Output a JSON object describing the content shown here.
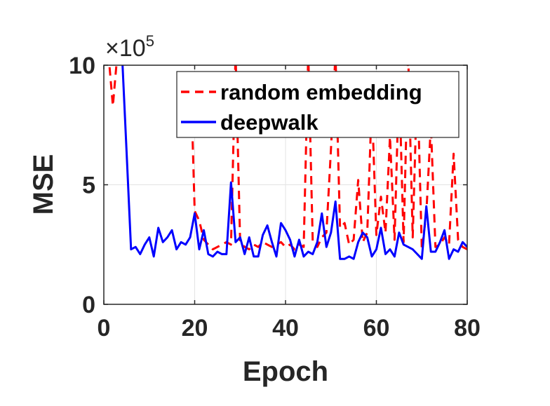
{
  "chart_data": {
    "type": "line",
    "xlabel": "Epoch",
    "ylabel": "MSE",
    "xlim": [
      0,
      80
    ],
    "ylim": [
      0,
      10
    ],
    "y_multiplier": {
      "base": "×10",
      "exponent": "5"
    },
    "xticks": [
      "0",
      "20",
      "40",
      "60",
      "80"
    ],
    "yticks": [
      "0",
      "5",
      "10"
    ],
    "grid": true,
    "legend_position": "top-right",
    "series": [
      {
        "name": "random embedding",
        "color": "#ff0000",
        "style": "dashed",
        "x": [
          1,
          2,
          3,
          4,
          5,
          6,
          7,
          8,
          9,
          10,
          11,
          12,
          13,
          14,
          15,
          16,
          17,
          18,
          19,
          20,
          21,
          22,
          23,
          24,
          25,
          26,
          27,
          28,
          29,
          30,
          31,
          32,
          33,
          34,
          35,
          36,
          37,
          38,
          39,
          40,
          41,
          42,
          43,
          44,
          45,
          46,
          47,
          48,
          49,
          50,
          51,
          52,
          53,
          54,
          55,
          56,
          57,
          58,
          59,
          60,
          61,
          62,
          63,
          64,
          65,
          66,
          67,
          68,
          69,
          70,
          71,
          72,
          73,
          74,
          75,
          76,
          77,
          78,
          79,
          80
        ],
        "y": [
          10.5,
          8.3,
          10.5,
          10.5,
          10.5,
          10.5,
          10.5,
          10.5,
          10.5,
          10.5,
          10.5,
          10.5,
          10.5,
          10.5,
          10.5,
          10.5,
          10.5,
          10.5,
          10.5,
          3.9,
          3.5,
          2.7,
          2.5,
          2.3,
          2.4,
          2.5,
          2.6,
          2.5,
          10.5,
          2.6,
          2.4,
          2.3,
          2.5,
          2.4,
          2.6,
          2.5,
          2.4,
          2.5,
          2.6,
          2.4,
          2.5,
          2.3,
          2.5,
          2.4,
          10.5,
          2.6,
          2.4,
          2.8,
          3.0,
          6.5,
          10.5,
          3.2,
          3.4,
          2.5,
          2.7,
          5.2,
          2.6,
          3.0,
          8.5,
          2.9,
          4.5,
          3.0,
          7.0,
          2.7,
          9.5,
          2.6,
          10.5,
          2.8,
          9.5,
          2.3,
          3.8,
          7.5,
          2.4,
          2.5,
          2.8,
          2.5,
          6.3,
          2.7,
          2.4,
          2.3
        ]
      },
      {
        "name": "deepwalk",
        "color": "#0000ff",
        "style": "solid",
        "x": [
          4,
          5,
          6,
          7,
          8,
          9,
          10,
          11,
          12,
          13,
          14,
          15,
          16,
          17,
          18,
          19,
          20,
          21,
          22,
          23,
          24,
          25,
          26,
          27,
          28,
          29,
          30,
          31,
          32,
          33,
          34,
          35,
          36,
          37,
          38,
          39,
          40,
          41,
          42,
          43,
          44,
          45,
          46,
          47,
          48,
          49,
          50,
          51,
          52,
          53,
          54,
          55,
          56,
          57,
          58,
          59,
          60,
          61,
          62,
          63,
          64,
          65,
          66,
          67,
          68,
          69,
          70,
          71,
          72,
          73,
          74,
          75,
          76,
          77,
          78,
          79,
          80
        ],
        "y": [
          10.5,
          6.4,
          2.3,
          2.4,
          2.1,
          2.5,
          2.8,
          2.0,
          3.2,
          2.6,
          2.8,
          3.1,
          2.3,
          2.6,
          2.5,
          2.8,
          3.8,
          2.3,
          3.1,
          2.1,
          2.0,
          2.2,
          2.1,
          2.1,
          5.1,
          2.6,
          2.8,
          2.1,
          2.8,
          2.0,
          2.0,
          2.9,
          3.3,
          2.6,
          2.0,
          3.4,
          3.1,
          2.7,
          2.0,
          2.7,
          2.0,
          2.2,
          2.1,
          2.6,
          3.8,
          2.4,
          3.0,
          4.3,
          1.9,
          1.9,
          2.0,
          1.9,
          2.6,
          3.0,
          2.8,
          2.0,
          2.3,
          3.2,
          2.1,
          2.3,
          2.0,
          3.0,
          2.5,
          2.4,
          2.3,
          2.1,
          1.9,
          4.1,
          2.2,
          2.2,
          2.6,
          3.1,
          1.9,
          2.3,
          2.2,
          2.6,
          2.4
        ]
      }
    ]
  }
}
